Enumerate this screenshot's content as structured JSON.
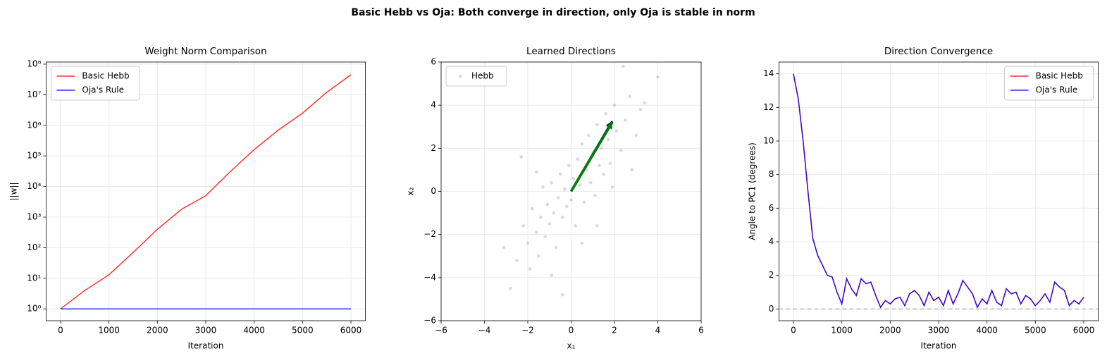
{
  "title": "Basic Hebb vs Oja: Both converge in direction, only Oja is stable in norm",
  "chart_data": [
    {
      "type": "line",
      "title": "Weight Norm Comparison",
      "xlabel": "Iteration",
      "ylabel": "||w||",
      "yscale": "log",
      "grid": true,
      "legend": "upper left",
      "xlim": [
        -300,
        6300
      ],
      "xticks": [
        0,
        1000,
        2000,
        3000,
        4000,
        5000,
        6000
      ],
      "ylim": [
        0.41,
        117000000
      ],
      "yticks": [
        {
          "value": 1,
          "label": "10⁰"
        },
        {
          "value": 10,
          "label": "10¹"
        },
        {
          "value": 100,
          "label": "10²"
        },
        {
          "value": 1000,
          "label": "10³"
        },
        {
          "value": 10000,
          "label": "10⁴"
        },
        {
          "value": 100000,
          "label": "10⁵"
        },
        {
          "value": 1000000,
          "label": "10⁶"
        },
        {
          "value": 10000000,
          "label": "10⁷"
        },
        {
          "value": 100000000,
          "label": "10⁸"
        }
      ],
      "x": [
        0,
        500,
        1000,
        1500,
        2000,
        2500,
        3000,
        3500,
        4000,
        4500,
        5000,
        5500,
        6000
      ],
      "series": [
        {
          "name": "Basic Hebb",
          "color": "#ff0000",
          "alpha": 0.8,
          "values": [
            1,
            4,
            13,
            70,
            400,
            1800,
            5000,
            30000,
            160000,
            700000,
            2500000,
            12000000,
            45000000
          ]
        },
        {
          "name": "Oja's Rule",
          "color": "#0000ff",
          "alpha": 0.8,
          "values": [
            1,
            1,
            1,
            1,
            1,
            1,
            1,
            1,
            1,
            1,
            1,
            1,
            1
          ]
        }
      ]
    },
    {
      "type": "scatter",
      "title": "Learned Directions",
      "xlabel": "x₁",
      "ylabel": "x₂",
      "grid": true,
      "legend": "upper left",
      "xlim": [
        -6,
        6
      ],
      "xticks": [
        {
          "value": -6,
          "label": "−6"
        },
        {
          "value": -4,
          "label": "−4"
        },
        {
          "value": -2,
          "label": "−2"
        },
        0,
        2,
        4,
        6
      ],
      "ylim": [
        -6,
        6
      ],
      "yticks": [
        {
          "value": -6,
          "label": "−6"
        },
        {
          "value": -4,
          "label": "−4"
        },
        {
          "value": -2,
          "label": "−2"
        },
        0,
        2,
        4,
        6
      ],
      "series": [
        {
          "name": "Hebb",
          "color": "#808080",
          "alpha": 0.3,
          "x": [
            -2.8,
            -3.1,
            -2.5,
            -2.2,
            -2.0,
            -1.8,
            -1.6,
            -1.5,
            -1.4,
            -1.3,
            -1.2,
            -1.1,
            -1.0,
            -0.9,
            -0.8,
            -0.7,
            -0.6,
            -0.5,
            -0.4,
            -0.3,
            -0.2,
            -0.1,
            0.0,
            0.1,
            0.2,
            0.3,
            0.4,
            0.5,
            0.6,
            0.7,
            0.8,
            0.9,
            1.0,
            1.1,
            1.2,
            1.3,
            1.4,
            1.5,
            1.6,
            1.7,
            1.8,
            2.0,
            2.1,
            2.3,
            2.5,
            2.7,
            3.0,
            3.2,
            3.4,
            4.0,
            2.4,
            -2.3,
            -0.4,
            1.2,
            -1.9,
            0.5,
            -0.9,
            1.9,
            -1.6,
            2.8
          ],
          "values": [
            -4.5,
            -2.6,
            -3.2,
            -1.6,
            -2.4,
            -0.8,
            -1.9,
            -3.0,
            -1.2,
            0.2,
            -2.1,
            -0.6,
            -1.5,
            0.4,
            -1.0,
            -2.6,
            -0.3,
            0.8,
            -1.2,
            0.1,
            -0.7,
            1.2,
            -0.4,
            0.6,
            -1.6,
            1.5,
            0.3,
            2.2,
            -0.5,
            1.0,
            2.6,
            0.4,
            1.8,
            -0.2,
            3.1,
            1.2,
            2.0,
            0.8,
            3.6,
            2.4,
            1.3,
            4.0,
            2.8,
            1.9,
            3.3,
            4.4,
            2.6,
            3.8,
            4.1,
            5.3,
            5.8,
            1.6,
            -4.8,
            -1.6,
            -3.6,
            -2.4,
            -3.9,
            0.2,
            0.9,
            1.0
          ]
        }
      ],
      "arrows": [
        {
          "color": "#00008b",
          "x": [
            0,
            1.9
          ],
          "y": [
            0,
            3.25
          ]
        },
        {
          "color": "#008000",
          "x": [
            0,
            1.9
          ],
          "y": [
            0,
            3.2
          ]
        }
      ]
    },
    {
      "type": "line",
      "title": "Direction Convergence",
      "xlabel": "Iteration",
      "ylabel": "Angle to PC1 (degrees)",
      "grid": true,
      "legend": "upper right",
      "hline": 0,
      "xlim": [
        -300,
        6300
      ],
      "xticks": [
        0,
        1000,
        2000,
        3000,
        4000,
        5000,
        6000
      ],
      "ylim": [
        -0.7,
        14.7
      ],
      "yticks": [
        0,
        2,
        4,
        6,
        8,
        10,
        12,
        14
      ],
      "x": [
        0,
        100,
        200,
        300,
        400,
        500,
        600,
        700,
        800,
        900,
        1000,
        1100,
        1200,
        1300,
        1400,
        1500,
        1600,
        1700,
        1800,
        1900,
        2000,
        2100,
        2200,
        2300,
        2400,
        2500,
        2600,
        2700,
        2800,
        2900,
        3000,
        3100,
        3200,
        3300,
        3400,
        3500,
        3600,
        3700,
        3800,
        3900,
        4000,
        4100,
        4200,
        4300,
        4400,
        4500,
        4600,
        4700,
        4800,
        4900,
        5000,
        5100,
        5200,
        5300,
        5400,
        5500,
        5600,
        5700,
        5800,
        5900,
        6000
      ],
      "series": [
        {
          "name": "Basic Hebb",
          "color": "#ff0000",
          "alpha": 0.8,
          "values": [
            14,
            12.5,
            10,
            7,
            4.2,
            3.2,
            2.6,
            2.0,
            1.9,
            1.0,
            0.3,
            1.8,
            1.2,
            0.8,
            1.8,
            1.5,
            1.6,
            0.8,
            0.1,
            0.5,
            0.3,
            0.6,
            0.7,
            0.2,
            0.9,
            1.1,
            0.8,
            0.2,
            1.0,
            0.5,
            0.7,
            0.2,
            1.1,
            0.3,
            0.9,
            1.7,
            1.3,
            0.9,
            0.1,
            0.6,
            0.3,
            1.1,
            0.4,
            0.2,
            1.2,
            0.9,
            1.0,
            0.3,
            0.8,
            0.6,
            0.2,
            0.5,
            0.9,
            0.4,
            1.6,
            1.3,
            1.1,
            0.2,
            0.5,
            0.3,
            0.7
          ]
        },
        {
          "name": "Oja's Rule",
          "color": "#0000ff",
          "alpha": 0.8,
          "values": [
            14,
            12.5,
            10,
            7,
            4.2,
            3.2,
            2.6,
            2.0,
            1.9,
            1.0,
            0.3,
            1.8,
            1.2,
            0.8,
            1.8,
            1.5,
            1.6,
            0.8,
            0.1,
            0.5,
            0.3,
            0.6,
            0.7,
            0.2,
            0.9,
            1.1,
            0.8,
            0.2,
            1.0,
            0.5,
            0.7,
            0.2,
            1.1,
            0.3,
            0.9,
            1.7,
            1.3,
            0.9,
            0.1,
            0.6,
            0.3,
            1.1,
            0.4,
            0.2,
            1.2,
            0.9,
            1.0,
            0.3,
            0.8,
            0.6,
            0.2,
            0.5,
            0.9,
            0.4,
            1.6,
            1.3,
            1.1,
            0.2,
            0.5,
            0.3,
            0.7
          ]
        }
      ]
    }
  ]
}
